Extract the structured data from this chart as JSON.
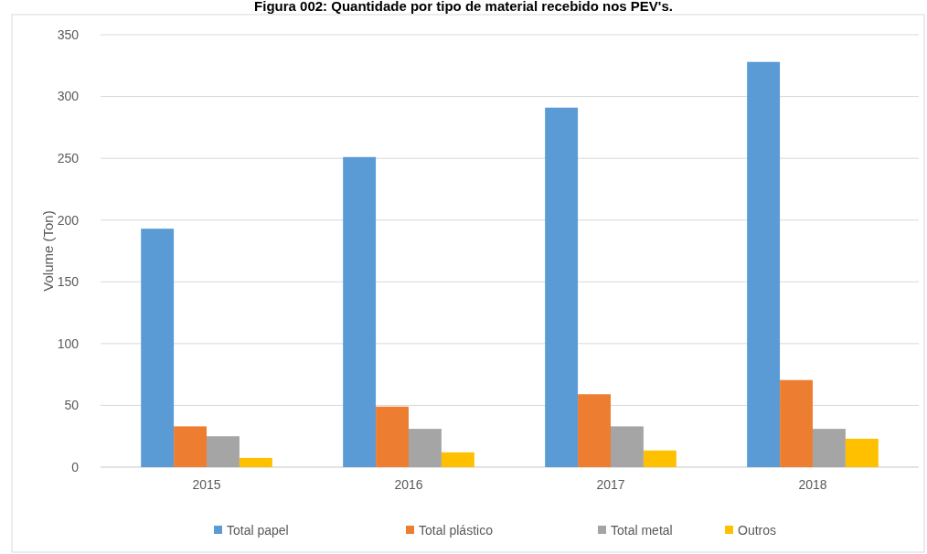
{
  "chart_data": {
    "type": "bar",
    "title": "Figura 002: Quantidade por tipo de material recebido nos PEV's.",
    "ylabel": "Volume (Ton)",
    "categories": [
      "2015",
      "2016",
      "2017",
      "2018"
    ],
    "series": [
      {
        "name": "Total papel",
        "color": "#5b9bd5",
        "values": [
          193,
          251,
          291,
          328
        ]
      },
      {
        "name": "Total plástico",
        "color": "#ed7d31",
        "values": [
          33,
          49,
          59,
          70.5
        ]
      },
      {
        "name": "Total metal",
        "color": "#a5a5a5",
        "values": [
          25,
          31,
          33,
          31
        ]
      },
      {
        "name": "Outros",
        "color": "#ffc000",
        "values": [
          7.5,
          12,
          13.5,
          23
        ]
      }
    ],
    "ylim": [
      0,
      350
    ],
    "yticks": [
      0,
      50,
      100,
      150,
      200,
      250,
      300,
      350
    ],
    "grid": "y",
    "legend": "bottom"
  }
}
